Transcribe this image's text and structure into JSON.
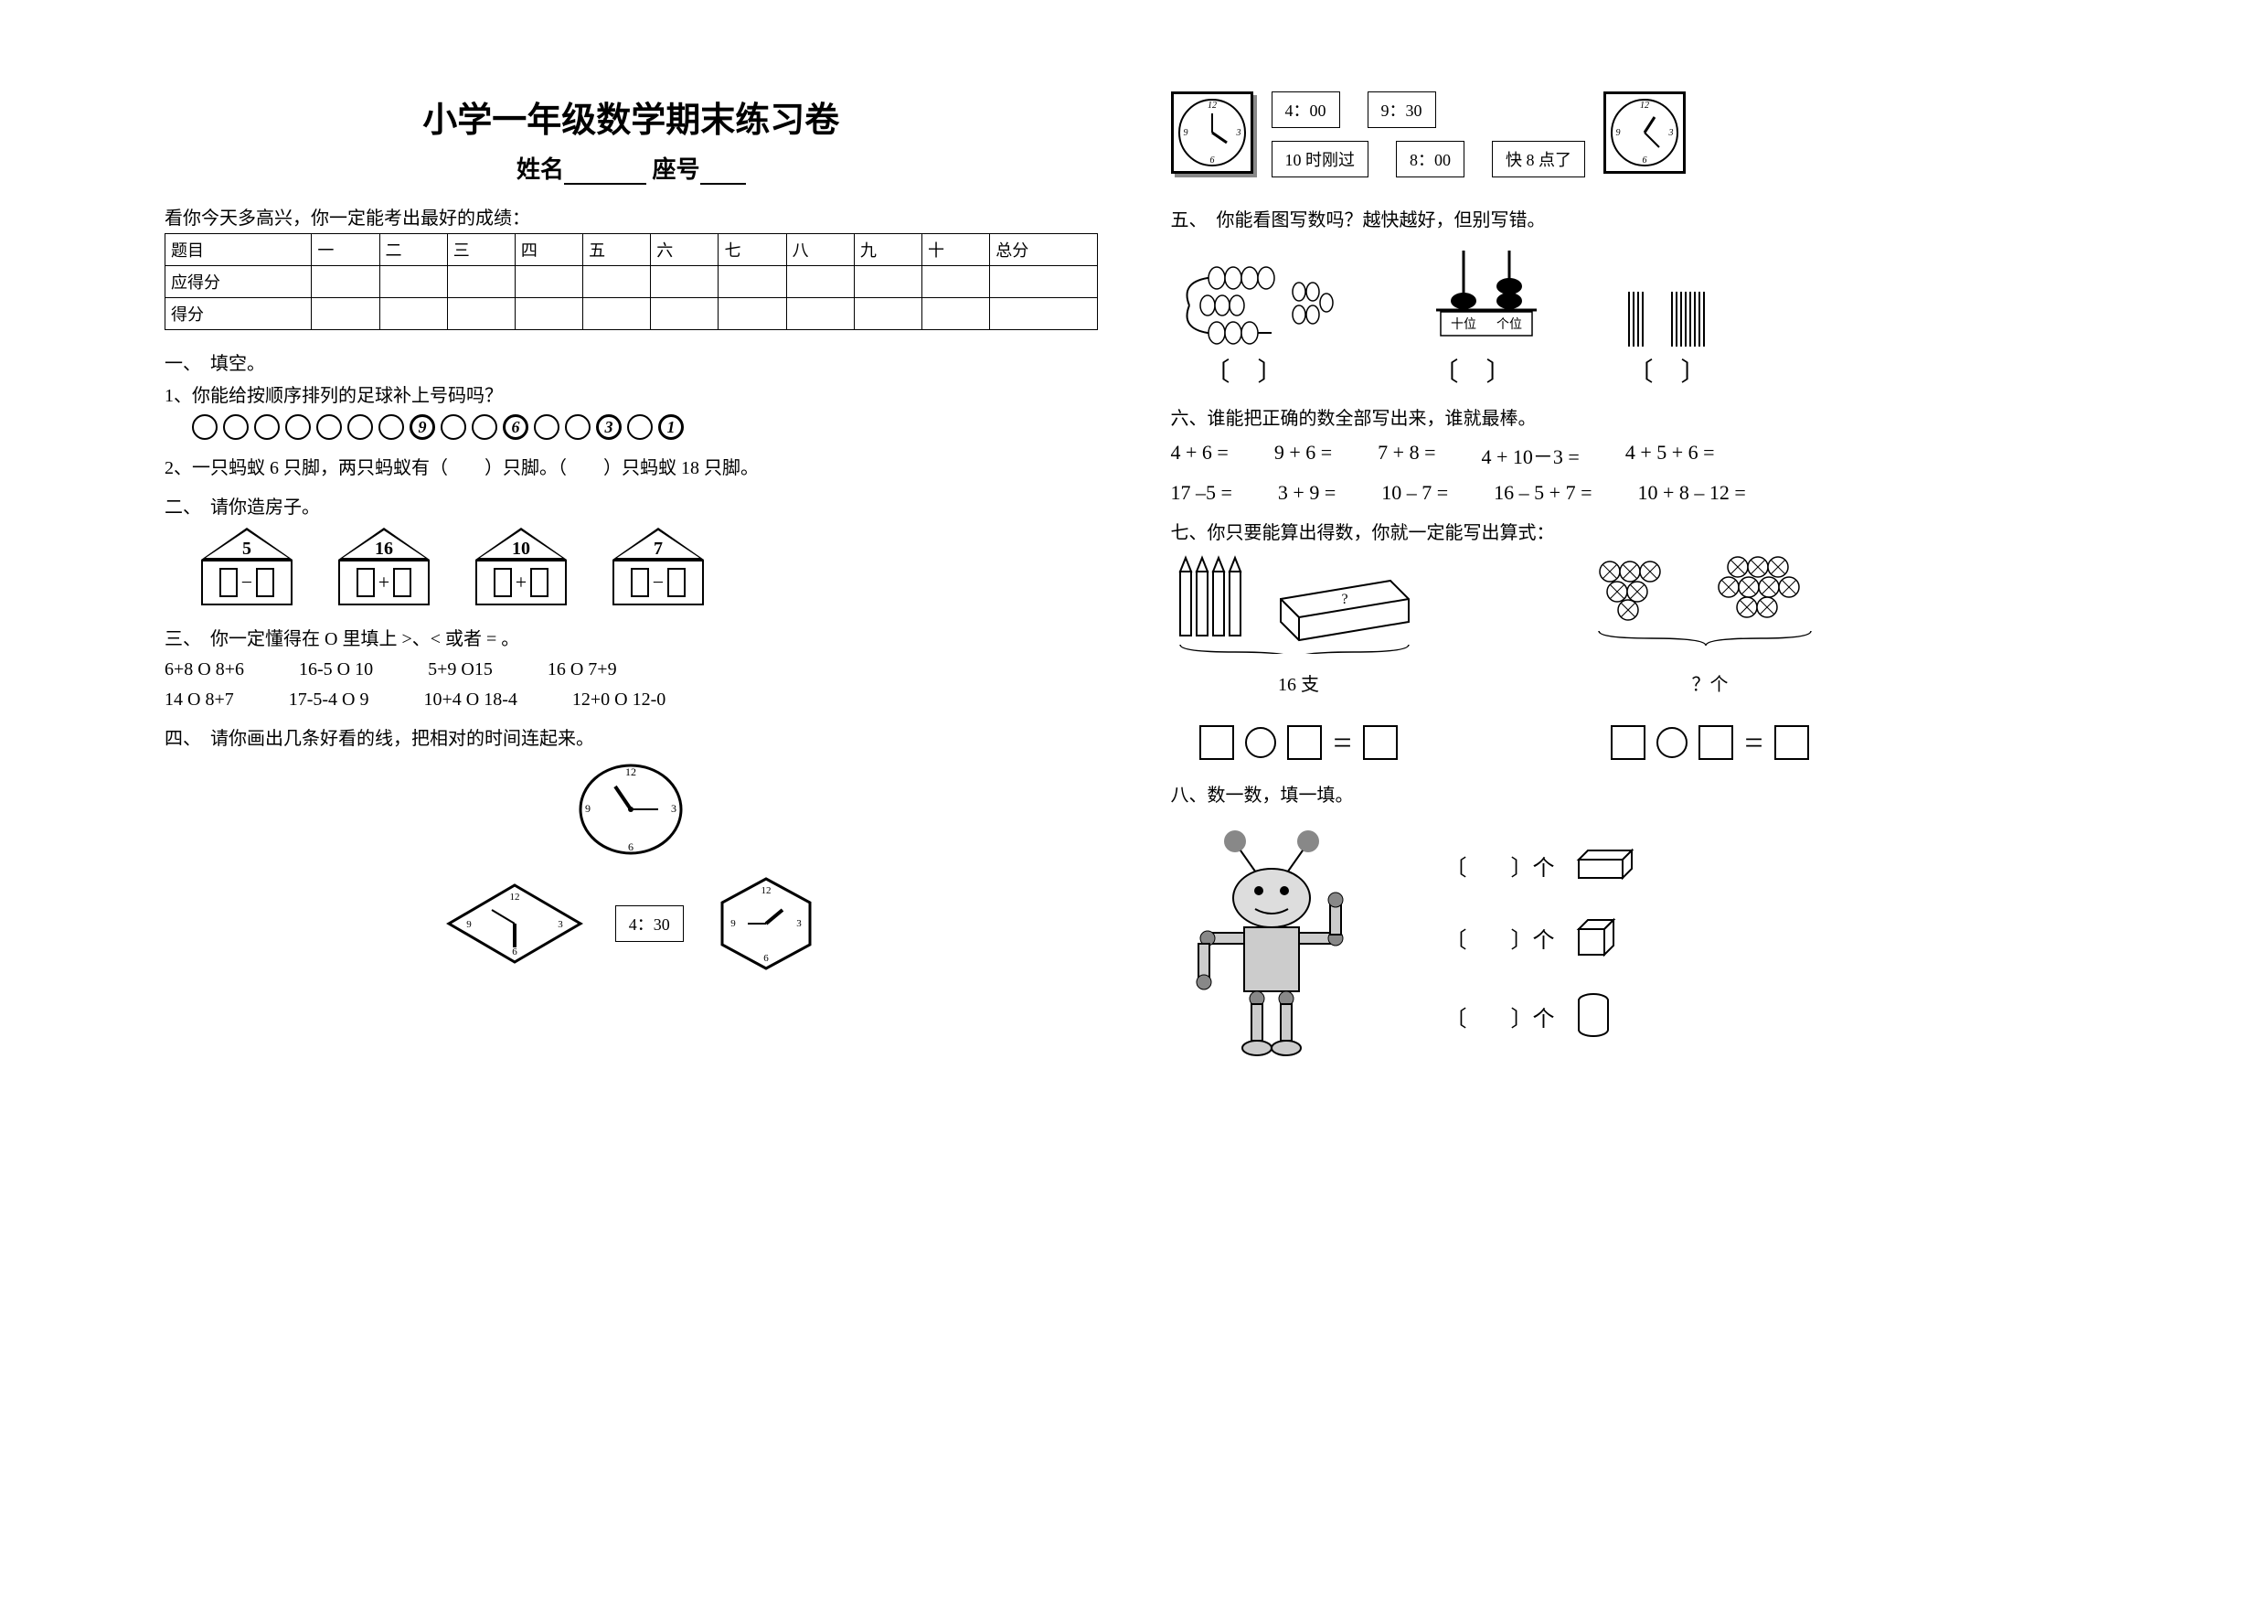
{
  "title": "小学一年级数学期末练习卷",
  "name_label": "姓名",
  "seat_label": "座号",
  "score_intro": "看你今天多高兴，你一定能考出最好的成绩：",
  "score_headers": [
    "题目",
    "一",
    "二",
    "三",
    "四",
    "五",
    "六",
    "七",
    "八",
    "九",
    "十",
    "总分"
  ],
  "score_rows": [
    "应得分",
    "得分"
  ],
  "s1": {
    "title": "一、　填空。",
    "q1": "1、你能给按顺序排列的足球补上号码吗？",
    "q2": "2、一只蚂蚁 6 只脚，两只蚂蚁有（　　）只脚。（　　）只蚂蚁 18 只脚。"
  },
  "circles": [
    "",
    "",
    "",
    "",
    "",
    "",
    "",
    "9",
    "",
    "",
    "6",
    "",
    "",
    "3",
    "",
    "1"
  ],
  "s2": {
    "title": "二、　请你造房子。"
  },
  "houses": [
    {
      "num": "5",
      "op": "−"
    },
    {
      "num": "16",
      "op": "+"
    },
    {
      "num": "10",
      "op": "+"
    },
    {
      "num": "7",
      "op": "−"
    }
  ],
  "s3": {
    "title": "三、　你一定懂得在 O 里填上 >、< 或者 = 。",
    "row1": [
      "6+8 O 8+6",
      "16-5 O 10",
      "5+9 O15",
      "16 O 7+9"
    ],
    "row2": [
      "14 O 8+7",
      "17-5-4 O 9",
      "10+4 O 18-4",
      "12+0 O 12-0"
    ]
  },
  "s4": {
    "title": "四、　请你画出几条好看的线，把相对的时间连起来。",
    "t1": "4：30"
  },
  "top_times_row1": [
    "4：00",
    "9：30"
  ],
  "top_times_row2": [
    "10 时刚过",
    "8：00",
    "快 8 点了"
  ],
  "s5": {
    "title": "五、　你能看图写数吗？越快越好，但别写错。",
    "abacus_labels": "十位　个位"
  },
  "s6": {
    "title": "六、谁能把正确的数全部写出来，谁就最棒。",
    "row1": [
      "4 + 6 =",
      "9 + 6 =",
      "7 + 8 =",
      "4 + 10－3 =",
      "4 + 5 + 6 ="
    ],
    "row2": [
      "17 –5 =",
      "3 + 9 =",
      "10 – 7 =",
      "16 – 5 + 7 =",
      "10 + 8 – 12 ="
    ]
  },
  "s7": {
    "title": "七、你只要能算出得数，你就一定能写出算式：",
    "cap1": "16 支",
    "cap2": "？个"
  },
  "s8": {
    "title": "八、数一数，填一填。",
    "unit": "个"
  },
  "colors": {
    "bg": "#ffffff",
    "fg": "#000000",
    "gray": "#888888"
  }
}
